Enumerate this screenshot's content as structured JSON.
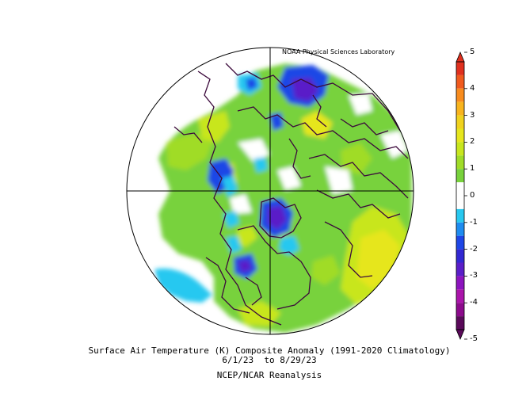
{
  "credit": "NOAA Physical Sciences Laboratory",
  "title": "Surface Air Temperature (K) Composite Anomaly (1991-2020 Climatology)",
  "dates": "6/1/23  to 8/29/23",
  "source": "NCEP/NCAR Reanalysis",
  "colorbar": {
    "min": -5,
    "max": 5,
    "tick_labels": [
      "5",
      "4",
      "3",
      "2",
      "1",
      "0",
      "-1",
      "-2",
      "-3",
      "-4",
      "-5"
    ],
    "bins": [
      {
        "from": 4.5,
        "to": 5.0,
        "color": "#e0301e"
      },
      {
        "from": 4.0,
        "to": 4.5,
        "color": "#f05a1e"
      },
      {
        "from": 3.5,
        "to": 4.0,
        "color": "#f88c1e"
      },
      {
        "from": 3.0,
        "to": 3.5,
        "color": "#f8b41e"
      },
      {
        "from": 2.5,
        "to": 3.0,
        "color": "#f0d21e"
      },
      {
        "from": 2.0,
        "to": 2.5,
        "color": "#e6e61e"
      },
      {
        "from": 1.5,
        "to": 2.0,
        "color": "#c8e61e"
      },
      {
        "from": 1.0,
        "to": 1.5,
        "color": "#a0dc28"
      },
      {
        "from": 0.5,
        "to": 1.0,
        "color": "#78d23c"
      },
      {
        "from": 0.0,
        "to": 0.5,
        "color": "#ffffff"
      },
      {
        "from": -0.5,
        "to": 0.0,
        "color": "#ffffff"
      },
      {
        "from": -1.0,
        "to": -0.5,
        "color": "#28c8f0"
      },
      {
        "from": -1.5,
        "to": -1.0,
        "color": "#1e8cf0"
      },
      {
        "from": -2.0,
        "to": -1.5,
        "color": "#1e46e6"
      },
      {
        "from": -2.5,
        "to": -2.0,
        "color": "#3228d2"
      },
      {
        "from": -3.0,
        "to": -2.5,
        "color": "#5a1ec8"
      },
      {
        "from": -3.5,
        "to": -3.0,
        "color": "#8c14be"
      },
      {
        "from": -4.0,
        "to": -3.5,
        "color": "#aa14aa"
      },
      {
        "from": -4.5,
        "to": -4.0,
        "color": "#8c0a8c"
      },
      {
        "from": -5.0,
        "to": -4.5,
        "color": "#5a0a5a"
      }
    ]
  },
  "colors": {
    "warm_1": "#78d23c",
    "warm_2": "#a0dc28",
    "warm_3": "#c8e61e",
    "warm_4": "#e6e61e",
    "cold_1": "#28c8f0",
    "cold_2": "#1e46e6",
    "cold_3": "#5a1ec8",
    "coastline": "#3c0a3c"
  }
}
